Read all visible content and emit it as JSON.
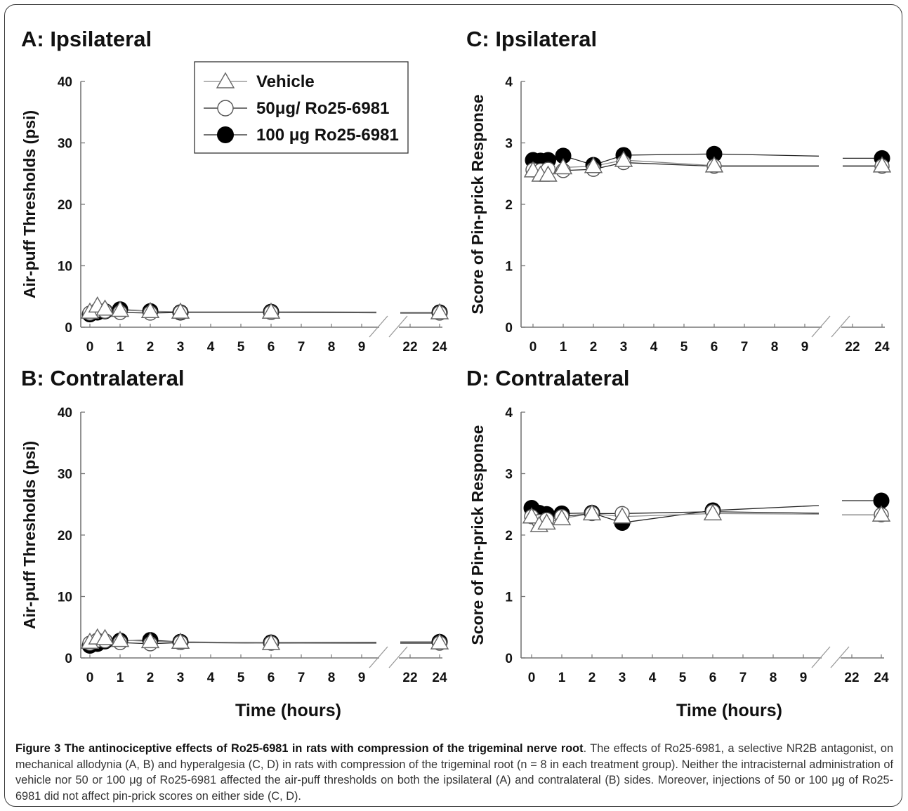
{
  "chart_data": [
    {
      "panel": "A: Ipsilateral",
      "title": "A: Ipsilateral",
      "type": "line",
      "ylabel": "Air-puff Thresholds (psi)",
      "xlabel": "",
      "ylim": [
        0,
        40
      ],
      "yticks": [
        0,
        10,
        20,
        30,
        40
      ],
      "xticks": [
        "0",
        "1",
        "2",
        "3",
        "4",
        "5",
        "6",
        "7",
        "8",
        "9",
        "22",
        "24"
      ],
      "x_axis_break": "between 9 and 22",
      "x": [
        0,
        0.25,
        0.5,
        1,
        2,
        3,
        6,
        24
      ],
      "series": [
        {
          "name": "Vehicle",
          "marker": "triangle",
          "values": [
            2.5,
            3.5,
            3.0,
            2.8,
            2.6,
            2.5,
            2.5,
            2.4
          ]
        },
        {
          "name": "50μg/ Ro25-6981",
          "marker": "open-circle",
          "values": [
            2.3,
            2.8,
            2.6,
            2.4,
            2.3,
            2.4,
            2.4,
            2.3
          ]
        },
        {
          "name": "100 μg Ro25-6981",
          "marker": "filled-circle",
          "values": [
            2.1,
            2.4,
            2.6,
            2.9,
            2.6,
            2.4,
            2.5,
            2.4
          ]
        }
      ]
    },
    {
      "panel": "B: Contralateral",
      "title": "B: Contralateral",
      "type": "line",
      "ylabel": "Air-puff Thresholds (psi)",
      "xlabel": "Time (hours)",
      "ylim": [
        0,
        40
      ],
      "yticks": [
        0,
        10,
        20,
        30,
        40
      ],
      "xticks": [
        "0",
        "1",
        "2",
        "3",
        "4",
        "5",
        "6",
        "7",
        "8",
        "9",
        "22",
        "24"
      ],
      "x_axis_break": "between 9 and 22",
      "x": [
        0,
        0.25,
        0.5,
        1,
        2,
        3,
        6,
        24
      ],
      "series": [
        {
          "name": "Vehicle",
          "marker": "triangle",
          "values": [
            2.6,
            3.3,
            3.2,
            2.9,
            2.7,
            2.6,
            2.4,
            2.5
          ]
        },
        {
          "name": "50μg/ Ro25-6981",
          "marker": "open-circle",
          "values": [
            2.4,
            2.9,
            2.8,
            2.5,
            2.3,
            2.5,
            2.4,
            2.4
          ]
        },
        {
          "name": "100 μg Ro25-6981",
          "marker": "filled-circle",
          "values": [
            2.0,
            2.3,
            2.7,
            2.8,
            2.9,
            2.6,
            2.5,
            2.6
          ]
        }
      ]
    },
    {
      "panel": "C: Ipsilateral",
      "title": "C: Ipsilateral",
      "type": "line",
      "ylabel": "Score of Pin-prick Response",
      "xlabel": "",
      "ylim": [
        0,
        4
      ],
      "yticks": [
        0,
        1,
        2,
        3,
        4
      ],
      "xticks": [
        "0",
        "1",
        "2",
        "3",
        "4",
        "5",
        "6",
        "7",
        "8",
        "9",
        "22",
        "24"
      ],
      "x_axis_break": "between 9 and 22",
      "x": [
        0,
        0.25,
        0.5,
        1,
        2,
        3,
        6,
        24
      ],
      "series": [
        {
          "name": "Vehicle",
          "marker": "triangle",
          "values": [
            2.55,
            2.48,
            2.48,
            2.6,
            2.62,
            2.72,
            2.63,
            2.63
          ]
        },
        {
          "name": "50μg/ Ro25-6981",
          "marker": "open-circle",
          "values": [
            2.56,
            2.55,
            2.57,
            2.55,
            2.57,
            2.68,
            2.62,
            2.62
          ]
        },
        {
          "name": "100 μg Ro25-6981",
          "marker": "filled-circle",
          "values": [
            2.72,
            2.71,
            2.72,
            2.79,
            2.64,
            2.8,
            2.82,
            2.75
          ]
        }
      ]
    },
    {
      "panel": "D: Contralateral",
      "title": "D: Contralateral",
      "type": "line",
      "ylabel": "Score of Pin-prick Response",
      "xlabel": "Time (hours)",
      "ylim": [
        0,
        4
      ],
      "yticks": [
        0,
        1,
        2,
        3,
        4
      ],
      "xticks": [
        "0",
        "1",
        "2",
        "3",
        "4",
        "5",
        "6",
        "7",
        "8",
        "9",
        "22",
        "24"
      ],
      "x_axis_break": "between 9 and 22",
      "x": [
        0,
        0.25,
        0.5,
        1,
        2,
        3,
        6,
        24
      ],
      "series": [
        {
          "name": "Vehicle",
          "marker": "triangle",
          "values": [
            2.3,
            2.16,
            2.2,
            2.27,
            2.35,
            2.3,
            2.35,
            2.33
          ]
        },
        {
          "name": "50μg/ Ro25-6981",
          "marker": "open-circle",
          "values": [
            2.3,
            2.22,
            2.25,
            2.3,
            2.35,
            2.35,
            2.38,
            2.33
          ]
        },
        {
          "name": "100 μg Ro25-6981",
          "marker": "filled-circle",
          "values": [
            2.44,
            2.36,
            2.34,
            2.35,
            2.36,
            2.2,
            2.4,
            2.56
          ]
        }
      ]
    }
  ],
  "legend": {
    "entries": [
      {
        "label": "Vehicle",
        "marker": "triangle"
      },
      {
        "label": "50μg/ Ro25-6981",
        "marker": "open-circle"
      },
      {
        "label": "100 μg Ro25-6981",
        "marker": "filled-circle"
      }
    ]
  },
  "caption": {
    "label": "Figure 3",
    "title": "The antinociceptive effects of Ro25-6981 in rats with compression of the trigeminal nerve root",
    "body": "The effects of Ro25-6981, a selective NR2B antagonist, on mechanical allodynia (A, B) and hyperalgesia (C, D) in rats with compression of the trigeminal root (n = 8 in each treatment group). Neither the intracisternal administration of vehicle nor 50 or 100 μg of Ro25-6981 affected the air-puff thresholds on both the ipsilateral (A) and contralateral (B) sides. Moreover, injections of 50 or 100 μg of Ro25-6981 did not affect pin-prick scores on either side (C, D)."
  }
}
